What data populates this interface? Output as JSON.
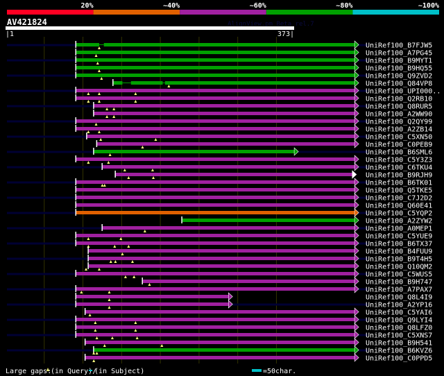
{
  "legend_scale": {
    "labels": [
      "20%",
      "~40%",
      "~60%",
      "~80%",
      "~100%"
    ],
    "colors": [
      "#ff0022",
      "#e06000",
      "#a020a0",
      "#00a000",
      "#00c0c8"
    ]
  },
  "query": {
    "name": "AV421824",
    "start_label": "|1",
    "end_label": "373|",
    "length": 373
  },
  "watermark": "AlignView.pm Beta rel.7",
  "colors": {
    "green": "#00a000",
    "magenta": "#a020a0",
    "orange": "#e06000",
    "navy": "#000033",
    "gap": "#ffff80",
    "grid": "#333300"
  },
  "hits": [
    {
      "name": "UniRef100_B7FJW5",
      "color": "green",
      "start": 92,
      "end": 452,
      "gaps": [
        122
      ],
      "subject_gaps": [
        [
          122,
          128
        ]
      ]
    },
    {
      "name": "UniRef100_A7PG45",
      "color": "green",
      "start": 92,
      "end": 452,
      "gaps": [
        118
      ]
    },
    {
      "name": "UniRef100_B9MYT1",
      "color": "green",
      "start": 92,
      "end": 452,
      "gaps": [
        120
      ]
    },
    {
      "name": "UniRef100_B9HQ55",
      "color": "green",
      "start": 92,
      "end": 452,
      "gaps": [
        122
      ]
    },
    {
      "name": "UniRef100_Q9ZVD2",
      "color": "green",
      "start": 92,
      "end": 452,
      "gaps": [
        125
      ]
    },
    {
      "name": "UniRef100_Q84VP8",
      "color": "green",
      "start": 140,
      "end": 452,
      "gaps": [
        212
      ],
      "subject_gaps": [
        [
          152,
          163
        ],
        [
          204,
          207
        ]
      ]
    },
    {
      "name": "UniRef100_UPI000..",
      "color": "magenta",
      "start": 92,
      "end": 452,
      "gaps": [
        108,
        122,
        169
      ]
    },
    {
      "name": "UniRef100_Q2RB10",
      "color": "magenta",
      "start": 92,
      "end": 452,
      "gaps": [
        108,
        122,
        169
      ]
    },
    {
      "name": "UniRef100_Q8RUR5",
      "color": "magenta",
      "start": 115,
      "end": 452,
      "gaps": [
        132,
        141
      ]
    },
    {
      "name": "UniRef100_A2WW90",
      "color": "magenta",
      "start": 115,
      "end": 452,
      "gaps": [
        132,
        141
      ]
    },
    {
      "name": "UniRef100_Q2QY99",
      "color": "magenta",
      "start": 92,
      "end": 452,
      "gaps": [
        118
      ]
    },
    {
      "name": "UniRef100_A2ZB14",
      "color": "magenta",
      "start": 92,
      "end": 452,
      "gaps": [
        108,
        122
      ]
    },
    {
      "name": "UniRef100_C5XN50",
      "color": "magenta",
      "start": 106,
      "end": 452,
      "gaps": [
        124,
        195
      ]
    },
    {
      "name": "UniRef100_C0PEB9",
      "color": "magenta",
      "start": 119,
      "end": 452,
      "gaps": [
        178
      ]
    },
    {
      "name": "UniRef100_B6SML6",
      "color": "green",
      "start": 115,
      "end": 374,
      "gaps": [
        136
      ]
    },
    {
      "name": "UniRef100_C5Y3Z3",
      "color": "magenta",
      "start": 92,
      "end": 452,
      "gaps": [
        108,
        134
      ]
    },
    {
      "name": "UniRef100_C6TKU4",
      "color": "magenta",
      "start": 126,
      "end": 452,
      "gaps": [
        155,
        191
      ]
    },
    {
      "name": "UniRef100_B9RJH9",
      "color": "magenta",
      "start": 143,
      "end": 449,
      "gaps": [
        160,
        192
      ],
      "arrow": "white"
    },
    {
      "name": "UniRef100_B6TK01",
      "color": "magenta",
      "start": 92,
      "end": 452,
      "gaps": [
        126,
        129
      ]
    },
    {
      "name": "UniRef100_Q5TKE5",
      "color": "magenta",
      "start": 92,
      "end": 452,
      "gaps": []
    },
    {
      "name": "UniRef100_C7J2D2",
      "color": "magenta",
      "start": 92,
      "end": 452,
      "gaps": []
    },
    {
      "name": "UniRef100_Q60E41",
      "color": "magenta",
      "start": 92,
      "end": 452,
      "gaps": []
    },
    {
      "name": "UniRef100_C5YQP2",
      "color": "orange",
      "start": 92,
      "end": 452,
      "gaps": []
    },
    {
      "name": "UniRef100_A2ZYW2",
      "color": "green",
      "start": 229,
      "end": 452,
      "gaps": []
    },
    {
      "name": "UniRef100_A0MEP1",
      "color": "magenta",
      "start": 126,
      "end": 452,
      "gaps": [
        181
      ]
    },
    {
      "name": "UniRef100_C5YUE9",
      "color": "magenta",
      "start": 92,
      "end": 452,
      "gaps": [
        108,
        150
      ]
    },
    {
      "name": "UniRef100_B6TX37",
      "color": "magenta",
      "start": 92,
      "end": 452,
      "gaps": [
        108,
        142,
        160
      ]
    },
    {
      "name": "UniRef100_B4FUU9",
      "color": "magenta",
      "start": 108,
      "end": 452,
      "gaps": [
        152
      ]
    },
    {
      "name": "UniRef100_B9T4H5",
      "color": "magenta",
      "start": 108,
      "end": 452,
      "gaps": [
        137,
        143,
        165
      ]
    },
    {
      "name": "UniRef100_Q10QM2",
      "color": "magenta",
      "start": 108,
      "end": 452,
      "gaps": [
        105,
        122
      ]
    },
    {
      "name": "UniRef100_C5WUS5",
      "color": "magenta",
      "start": 92,
      "end": 452,
      "gaps": [
        156,
        167
      ]
    },
    {
      "name": "UniRef100_B9H747",
      "color": "magenta",
      "start": 178,
      "end": 452,
      "gaps": [
        187
      ]
    },
    {
      "name": "UniRef100_A7PAX7",
      "color": "magenta",
      "start": 92,
      "end": 452,
      "gaps": [
        99,
        135
      ]
    },
    {
      "name": "UniRef100_Q8L4I9",
      "color": "magenta",
      "start": 92,
      "end": 289,
      "gaps": [
        135
      ]
    },
    {
      "name": "UniRef100_A2YP16",
      "color": "magenta",
      "start": 92,
      "end": 289,
      "gaps": [
        135
      ]
    },
    {
      "name": "UniRef100_C5YAI6",
      "color": "magenta",
      "start": 104,
      "end": 452,
      "gaps": [
        110
      ]
    },
    {
      "name": "UniRef100_Q9LYI4",
      "color": "magenta",
      "start": 92,
      "end": 452,
      "gaps": [
        117,
        169
      ]
    },
    {
      "name": "UniRef100_Q8LFZ0",
      "color": "magenta",
      "start": 92,
      "end": 452,
      "gaps": [
        117,
        169
      ]
    },
    {
      "name": "UniRef100_C5XNS7",
      "color": "magenta",
      "start": 92,
      "end": 452,
      "gaps": [
        119,
        139,
        171
      ]
    },
    {
      "name": "UniRef100_B9H541",
      "color": "magenta",
      "start": 104,
      "end": 452,
      "gaps": [
        129,
        203
      ]
    },
    {
      "name": "UniRef100_B6KVZ6",
      "color": "green",
      "start": 115,
      "end": 452,
      "gaps": [
        115,
        119
      ]
    },
    {
      "name": "UniRef100_C0PPD5",
      "color": "magenta",
      "start": 104,
      "end": 452,
      "gaps": [
        115
      ]
    }
  ],
  "footer": {
    "gaps_label": "Large gaps:",
    "query_gap_label": "(in Query)/",
    "subject_gap_label": "(in Subject)",
    "scale_label": "=50char."
  }
}
